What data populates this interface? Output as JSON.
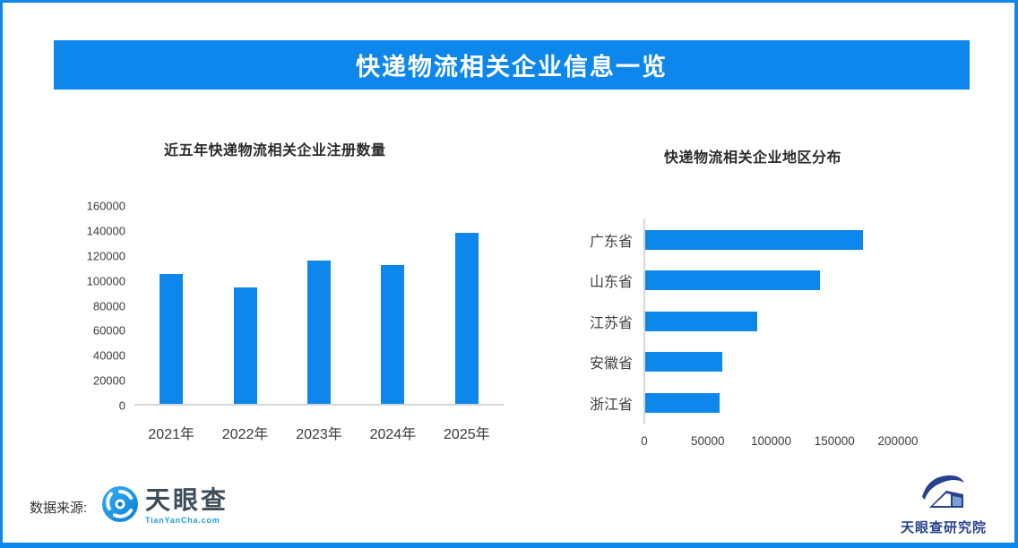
{
  "banner": {
    "title": "快递物流相关企业信息一览"
  },
  "colors": {
    "accent_blue": "#0e87ec",
    "axis_line": "#d6d6d6",
    "tick_text": "#3f3f3f",
    "banner_text": "#ffffff",
    "logo_slate": "#3e4d5a",
    "logo_link_blue": "#1e9de3",
    "logo_navy": "#2a4490"
  },
  "chart_data": [
    {
      "type": "bar",
      "orientation": "vertical",
      "title": "近五年快递物流相关企业注册数量",
      "categories": [
        "2021年",
        "2022年",
        "2023年",
        "2024年",
        "2025年"
      ],
      "values": [
        105000,
        94000,
        116000,
        112000,
        138000
      ],
      "xlabel": "",
      "ylabel": "",
      "ylim": [
        0,
        160000
      ],
      "yticks": [
        0,
        20000,
        40000,
        60000,
        80000,
        100000,
        120000,
        140000,
        160000
      ],
      "grid": false,
      "legend": "none",
      "bar_color": "#0e87ec"
    },
    {
      "type": "bar",
      "orientation": "horizontal",
      "title": "快递物流相关企业地区分布",
      "categories": [
        "广东省",
        "山东省",
        "江苏省",
        "安徽省",
        "浙江省"
      ],
      "values": [
        172000,
        138000,
        88000,
        61000,
        59000
      ],
      "xlabel": "",
      "ylabel": "",
      "xlim": [
        0,
        200000
      ],
      "xticks": [
        0,
        50000,
        100000,
        150000,
        200000
      ],
      "grid": false,
      "legend": "none",
      "bar_color": "#0e87ec"
    }
  ],
  "footer": {
    "source_label": "数据来源:",
    "tianyancha_name": "天眼查",
    "tianyancha_domain": "TianYanCha.com",
    "institute_name": "天眼查研究院"
  }
}
